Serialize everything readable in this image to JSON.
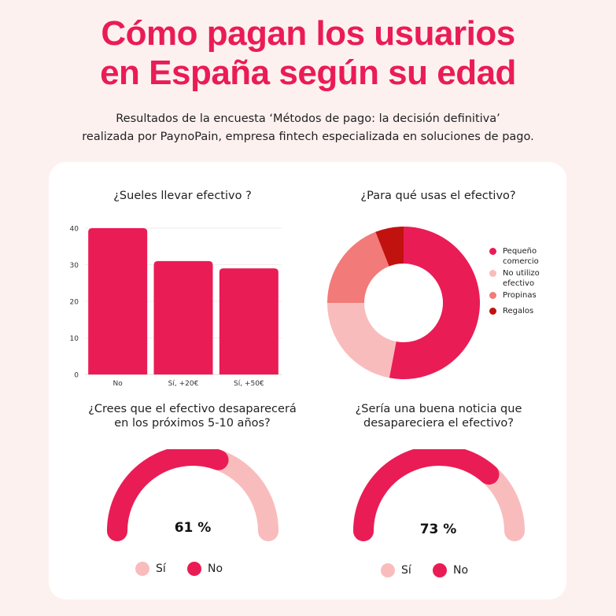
{
  "header": {
    "title_line1": "Cómo pagan los usuarios",
    "title_line2": "en España según su edad",
    "subtitle_line1": "Resultados de la encuesta  ‘Métodos de pago: la decisión definitiva’",
    "subtitle_line2": "realizada por PaynoPain, empresa fintech especializada en soluciones de pago."
  },
  "colors": {
    "accent": "#ea1c55",
    "light_pink": "#f9bcbc",
    "salmon": "#f27a78",
    "dark_red": "#c1120f"
  },
  "chart_data": [
    {
      "type": "bar",
      "title": "¿Sueles llevar efectivo ?",
      "categories": [
        "No",
        "Sí, +20€",
        "Sí, +50€"
      ],
      "values": [
        40,
        31,
        29
      ],
      "ylim": [
        0,
        40
      ],
      "yticks": [
        0,
        10,
        20,
        30,
        40
      ],
      "color": "#ea1c55",
      "grid": true
    },
    {
      "type": "pie",
      "title": "¿Para qué usas el efectivo?",
      "labels": [
        "Pequeño comercio",
        "No utilizo efectivo",
        "Propinas",
        "Regalos"
      ],
      "legend_lines": [
        [
          "Pequeño",
          "comercio"
        ],
        [
          "No utilizo",
          "efectivo"
        ],
        [
          "Propinas"
        ],
        [
          "Regalos"
        ]
      ],
      "values": [
        53,
        22,
        19,
        6
      ],
      "colors": [
        "#ea1c55",
        "#f9bcbc",
        "#f27a78",
        "#c1120f"
      ],
      "legend_position": "right"
    },
    {
      "type": "pie",
      "title_line1": "¿Crees que el efectivo desaparecerá",
      "title_line2": "en los próximos 5-10 años?",
      "labels": [
        "Sí",
        "No"
      ],
      "value_label": "61 %",
      "no_value": 61,
      "colors": [
        "#f9bcbc",
        "#ea1c55"
      ],
      "legend_position": "bottom"
    },
    {
      "type": "pie",
      "title_line1": "¿Sería una buena noticia que",
      "title_line2": "desapareciera el efectivo?",
      "labels": [
        "Sí",
        "No"
      ],
      "value_label": "73 %",
      "no_value": 73,
      "colors": [
        "#f9bcbc",
        "#ea1c55"
      ],
      "legend_position": "bottom"
    }
  ]
}
